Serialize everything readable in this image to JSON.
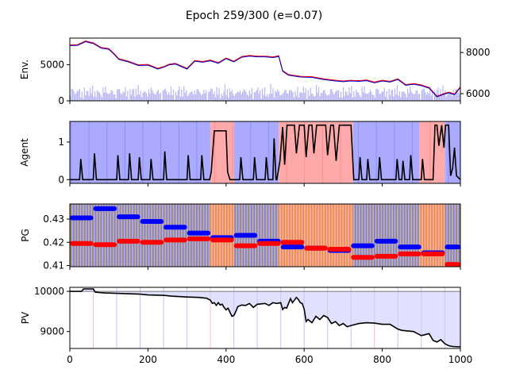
{
  "figure": {
    "title": "Epoch 259/300 (e=0.07)"
  },
  "chart_data": [
    {
      "type": "line",
      "panel": "env",
      "ylabel": "Env.",
      "xlim": [
        0,
        1000
      ],
      "ylim": [
        0,
        8700
      ],
      "y_ticks": [
        0,
        5000
      ],
      "y2lim": [
        5650,
        8700
      ],
      "y2_ticks": [
        6000,
        8000
      ],
      "series": [
        {
          "role": "price-envelope-red",
          "color": "#ff0000",
          "x": [
            0,
            20,
            40,
            55,
            60,
            80,
            100,
            115,
            125,
            150,
            175,
            200,
            225,
            240,
            255,
            270,
            300,
            320,
            340,
            360,
            380,
            400,
            420,
            440,
            460,
            480,
            500,
            520,
            535,
            545,
            560,
            590,
            620,
            650,
            680,
            700,
            720,
            740,
            760,
            780,
            800,
            820,
            840,
            860,
            880,
            900,
            920,
            940,
            960,
            970,
            985,
            1000
          ],
          "y": [
            7750,
            7800,
            8300,
            8100,
            8050,
            7400,
            7250,
            6450,
            5850,
            5500,
            5000,
            5050,
            4500,
            4750,
            5100,
            5200,
            4500,
            5600,
            5450,
            5650,
            5300,
            5950,
            5500,
            6150,
            6300,
            6200,
            6200,
            6100,
            6250,
            4200,
            3650,
            3400,
            3350,
            3050,
            2850,
            2750,
            2850,
            2800,
            2900,
            2600,
            2850,
            2700,
            3050,
            2250,
            2400,
            2200,
            1850,
            650,
            1050,
            1200,
            950,
            1950
          ]
        },
        {
          "role": "price-envelope-blue",
          "color": "#0000cc",
          "x": [
            0,
            20,
            40,
            55,
            60,
            80,
            100,
            115,
            125,
            150,
            175,
            200,
            225,
            240,
            255,
            270,
            300,
            320,
            340,
            360,
            380,
            400,
            420,
            440,
            460,
            480,
            500,
            520,
            535,
            545,
            560,
            590,
            620,
            650,
            680,
            700,
            720,
            740,
            760,
            780,
            800,
            820,
            840,
            860,
            880,
            900,
            920,
            940,
            960,
            970,
            985,
            1000
          ],
          "y": [
            7650,
            7700,
            8200,
            8000,
            7950,
            7300,
            7150,
            6350,
            5750,
            5400,
            4900,
            4950,
            4400,
            4650,
            5000,
            5100,
            4400,
            5500,
            5350,
            5550,
            5200,
            5850,
            5400,
            6050,
            6200,
            6100,
            6100,
            6000,
            6150,
            4100,
            3550,
            3300,
            3250,
            2950,
            2750,
            2650,
            2750,
            2700,
            2800,
            2500,
            2750,
            2600,
            2950,
            2150,
            2300,
            2100,
            1750,
            550,
            950,
            1100,
            850,
            1850
          ]
        }
      ]
    },
    {
      "type": "line",
      "panel": "agent",
      "ylabel": "Agent",
      "xlim": [
        0,
        1000
      ],
      "ylim": [
        -0.1,
        1.55
      ],
      "y_ticks": [
        0,
        1
      ],
      "series": [
        {
          "role": "agent-action",
          "color": "#000000",
          "x": [
            0,
            25,
            28,
            33,
            60,
            63,
            68,
            120,
            123,
            128,
            150,
            153,
            158,
            175,
            178,
            183,
            205,
            208,
            213,
            240,
            243,
            248,
            300,
            303,
            308,
            335,
            338,
            343,
            358,
            362,
            370,
            400,
            404,
            410,
            435,
            438,
            443,
            470,
            473,
            478,
            500,
            503,
            508,
            520,
            523,
            528,
            530,
            538,
            545,
            550,
            556,
            565,
            575,
            580,
            588,
            600,
            605,
            612,
            620,
            625,
            632,
            655,
            660,
            668,
            675,
            682,
            690,
            700,
            720,
            727,
            740,
            743,
            748,
            760,
            763,
            768,
            790,
            793,
            798,
            835,
            838,
            843,
            850,
            853,
            858,
            870,
            873,
            878,
            900,
            903,
            908,
            930,
            935,
            940,
            945,
            952,
            958,
            962,
            970,
            975,
            980,
            985,
            990,
            1000
          ],
          "y": [
            0,
            0,
            0.55,
            0,
            0,
            0.7,
            0,
            0,
            0.65,
            0,
            0,
            0.7,
            0,
            0,
            0.6,
            0,
            0,
            0.55,
            0,
            0,
            0.75,
            0,
            0,
            0.65,
            0,
            0,
            0.65,
            0,
            0,
            0.2,
            1.3,
            1.3,
            0.2,
            0,
            0,
            0.6,
            0,
            0,
            0.6,
            0,
            0,
            0.6,
            0,
            0,
            1.1,
            0,
            0,
            0.5,
            1.4,
            0.4,
            1.45,
            1.45,
            1.45,
            0.7,
            1.45,
            1.45,
            0.6,
            1.45,
            1.45,
            0.7,
            1.45,
            1.45,
            0.65,
            1.45,
            1.45,
            0.5,
            1.45,
            1.45,
            1.45,
            0,
            0,
            0.6,
            0,
            0,
            0.55,
            0,
            0,
            0.6,
            0,
            0,
            0.55,
            0,
            0,
            0.5,
            0,
            0,
            0.65,
            0,
            0,
            0.55,
            0,
            0,
            1.45,
            1.45,
            0.9,
            1.45,
            0.85,
            1.45,
            1.45,
            0.1,
            0.3,
            0.85,
            0.1,
            0
          ]
        }
      ],
      "background_bands": [
        {
          "from": 0,
          "to": 360,
          "state": "blue"
        },
        {
          "from": 360,
          "to": 420,
          "state": "red"
        },
        {
          "from": 420,
          "to": 535,
          "state": "blue"
        },
        {
          "from": 535,
          "to": 725,
          "state": "red"
        },
        {
          "from": 725,
          "to": 895,
          "state": "blue"
        },
        {
          "from": 895,
          "to": 960,
          "state": "red"
        },
        {
          "from": 960,
          "to": 1000,
          "state": "blue"
        }
      ]
    },
    {
      "type": "scatter",
      "panel": "pg",
      "ylabel": "PG",
      "xlim": [
        0,
        1000
      ],
      "ylim": [
        0.4095,
        0.4365
      ],
      "y_ticks": [
        0.41,
        0.42,
        0.43
      ],
      "series": [
        {
          "role": "pg-upper",
          "color": "#0000ff",
          "segments": [
            [
              0,
              60,
              0.4305
            ],
            [
              60,
              120,
              0.4345
            ],
            [
              120,
              180,
              0.431
            ],
            [
              180,
              240,
              0.429
            ],
            [
              240,
              300,
              0.4265
            ],
            [
              300,
              360,
              0.424
            ],
            [
              360,
              420,
              0.422
            ],
            [
              420,
              480,
              0.423
            ],
            [
              480,
              540,
              0.4205
            ],
            [
              540,
              600,
              0.418
            ],
            [
              600,
              660,
              0.4175
            ],
            [
              660,
              720,
              0.4165
            ],
            [
              720,
              780,
              0.4185
            ],
            [
              780,
              840,
              0.4205
            ],
            [
              840,
              900,
              0.418
            ],
            [
              900,
              960,
              0.4155
            ],
            [
              960,
              1000,
              0.418
            ]
          ]
        },
        {
          "role": "pg-lower",
          "color": "#ff0000",
          "segments": [
            [
              0,
              60,
              0.4195
            ],
            [
              60,
              120,
              0.419
            ],
            [
              120,
              180,
              0.4205
            ],
            [
              180,
              240,
              0.42
            ],
            [
              240,
              300,
              0.421
            ],
            [
              300,
              360,
              0.4215
            ],
            [
              360,
              420,
              0.421
            ],
            [
              420,
              480,
              0.4185
            ],
            [
              480,
              540,
              0.4195
            ],
            [
              540,
              600,
              0.42
            ],
            [
              600,
              660,
              0.4175
            ],
            [
              660,
              720,
              0.417
            ],
            [
              720,
              780,
              0.4135
            ],
            [
              780,
              840,
              0.414
            ],
            [
              840,
              900,
              0.415
            ],
            [
              900,
              960,
              0.415
            ],
            [
              960,
              1000,
              0.4105
            ]
          ]
        }
      ]
    },
    {
      "type": "line",
      "panel": "pv",
      "ylabel": "PV",
      "xlim": [
        0,
        1000
      ],
      "ylim": [
        8580,
        10100
      ],
      "y_ticks": [
        9000,
        10000
      ],
      "x_ticks": [
        0,
        200,
        400,
        600,
        800,
        1000
      ],
      "baseline": 10000,
      "series": [
        {
          "role": "portfolio-value",
          "color": "#000000",
          "x": [
            0,
            30,
            35,
            60,
            65,
            90,
            120,
            150,
            180,
            200,
            240,
            260,
            300,
            330,
            350,
            360,
            365,
            370,
            375,
            380,
            385,
            390,
            395,
            400,
            405,
            410,
            415,
            420,
            425,
            430,
            440,
            450,
            460,
            470,
            480,
            490,
            500,
            510,
            520,
            530,
            540,
            545,
            550,
            555,
            560,
            565,
            570,
            575,
            580,
            585,
            590,
            595,
            600,
            605,
            610,
            620,
            630,
            640,
            650,
            660,
            670,
            680,
            690,
            700,
            710,
            720,
            740,
            760,
            780,
            800,
            820,
            840,
            850,
            860,
            880,
            900,
            920,
            930,
            940,
            950,
            960,
            970,
            980,
            1000
          ],
          "y": [
            10000,
            10000,
            10060,
            10060,
            9980,
            9960,
            9950,
            9940,
            9930,
            9910,
            9900,
            9880,
            9860,
            9850,
            9830,
            9780,
            9700,
            9720,
            9650,
            9720,
            9660,
            9680,
            9600,
            9540,
            9580,
            9480,
            9380,
            9400,
            9500,
            9620,
            9660,
            9650,
            9700,
            9600,
            9680,
            9690,
            9700,
            9650,
            9720,
            9700,
            9720,
            9550,
            9600,
            9580,
            9700,
            9820,
            9720,
            9780,
            9850,
            9800,
            9720,
            9700,
            9560,
            9250,
            9300,
            9220,
            9380,
            9300,
            9400,
            9350,
            9200,
            9250,
            9150,
            9200,
            9120,
            9150,
            9200,
            9220,
            9210,
            9180,
            9180,
            9060,
            9030,
            9020,
            9000,
            8900,
            8950,
            8780,
            8740,
            8800,
            8700,
            8650,
            8630,
            8620
          ]
        }
      ]
    }
  ]
}
